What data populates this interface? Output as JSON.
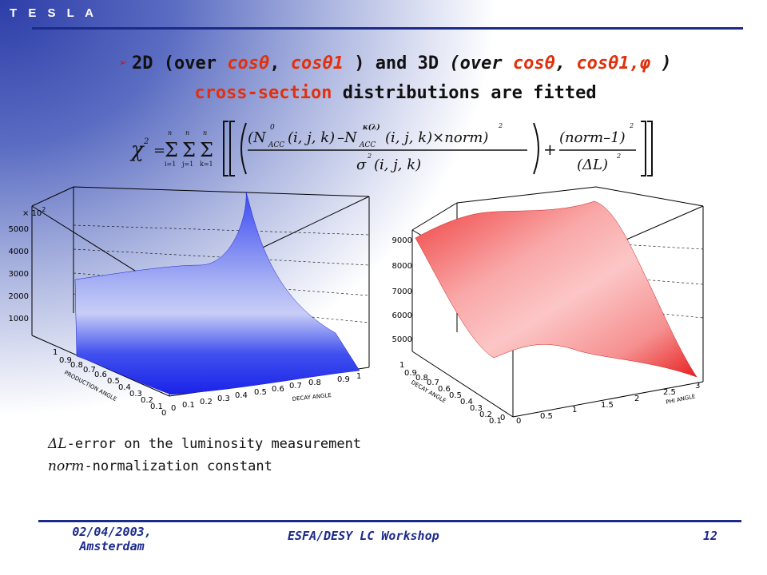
{
  "brand": "T E S L A",
  "headline": {
    "line1": [
      "2D (over ",
      "cosθ",
      ", ",
      "cosθ1",
      " ) and 3D ",
      "(over ",
      "cosθ",
      ", ",
      "cosθ1,",
      "φ",
      " )"
    ],
    "line2_hl": "cross-section",
    "line2_rest": " distributions are fitted"
  },
  "formula": {
    "chi": "χ",
    "sup2": "2",
    "eq": "=",
    "sum": "Σ",
    "sum_top": "n",
    "sum_i": "i=1",
    "sum_j": "j=1",
    "sum_k": "k=1",
    "num1_a": "(N",
    "num1_sup0": "0",
    "num1_sub": "ACC",
    "num1_args": "(i, j, k)",
    "minus": "–N",
    "num2_sup": "κ(λ)",
    "num2_sub": "ACC",
    "num2_args": "(i, j, k)×norm)",
    "den1": "σ",
    "den1_args": "(i, j, k)",
    "plus": "+",
    "num3": "(norm–1)",
    "den3": "(ΔL)"
  },
  "plot_left": {
    "multiplier": "× 10",
    "mult_exp": "2",
    "z_ticks": [
      "5000",
      "4000",
      "3000",
      "2000",
      "1000"
    ],
    "x_label": "DECAY ANGLE",
    "x_ticks": [
      "0",
      "0.1",
      "0.2",
      "0.3",
      "0.4",
      "0.5",
      "0.6",
      "0.7",
      "0.8",
      "0.9",
      "1"
    ],
    "y_label": "PRODUCTION ANGLE",
    "y_ticks": [
      "1",
      "0.9",
      "0.8",
      "0.7",
      "0.6",
      "0.5",
      "0.4",
      "0.3",
      "0.2",
      "0.1",
      "0"
    ],
    "surface_color": "#2233ee"
  },
  "plot_right": {
    "z_ticks": [
      "9000",
      "8000",
      "7000",
      "6000",
      "5000"
    ],
    "x_label": "PHI ANGLE",
    "x_ticks": [
      "0",
      "0.5",
      "1",
      "1.5",
      "2",
      "2.5",
      "3"
    ],
    "y_label": "DECAY ANGLE",
    "y_ticks": [
      "1",
      "0.9",
      "0.8",
      "0.7",
      "0.6",
      "0.5",
      "0.4",
      "0.3",
      "0.2",
      "0.1",
      "0"
    ],
    "surface_color": "#f04848"
  },
  "notes": {
    "l1_sym": "ΔL",
    "l1_text": "-error on the luminosity measurement",
    "l2_sym": "norm",
    "l2_text": "-normalization constant"
  },
  "footer": {
    "date": "02/04/2003,",
    "place": "Amsterdam",
    "event": "ESFA/DESY LC Workshop",
    "page": "12"
  }
}
